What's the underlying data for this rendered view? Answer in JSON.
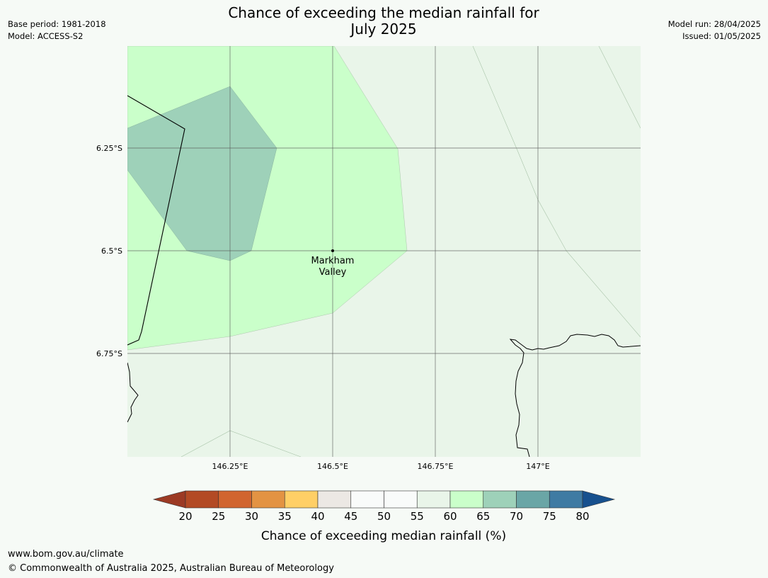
{
  "header": {
    "title_line1": "Chance of exceeding the median rainfall for",
    "title_line2": "July 2025",
    "base_period": "Base period: 1981-2018",
    "model": "Model: ACCESS-S2",
    "model_run": "Model run: 28/04/2025",
    "issued": "Issued: 01/05/2025"
  },
  "map": {
    "lat_labels": [
      "6.25°S",
      "6.5°S",
      "6.75°S"
    ],
    "lon_labels": [
      "146.25°E",
      "146.5°E",
      "146.75°E",
      "147°E"
    ],
    "place": {
      "name_line1": "Markham",
      "name_line2": "Valley"
    },
    "regions": [
      {
        "category": "65-70",
        "color": "#9ed1b9"
      },
      {
        "category": "60-65",
        "color": "#caffca"
      },
      {
        "category": "55-60",
        "color": "#e9f5e9"
      }
    ]
  },
  "colorbar": {
    "ticks": [
      "20",
      "25",
      "30",
      "35",
      "40",
      "45",
      "50",
      "55",
      "60",
      "65",
      "70",
      "75",
      "80"
    ],
    "colors": [
      "#9c3a24",
      "#b34a24",
      "#d1652f",
      "#e39343",
      "#ffcf66",
      "#ece8e4",
      "#f9fbfa",
      "#f9fbfa",
      "#e9f5e9",
      "#caffca",
      "#9ed1b9",
      "#6aa6a6",
      "#3f7ba3",
      "#17508e"
    ],
    "label": "Chance of exceeding median rainfall (%)"
  },
  "footer": {
    "url": "www.bom.gov.au/climate",
    "copyright": "© Commonwealth of Australia 2025, Australian Bureau of Meteorology"
  }
}
